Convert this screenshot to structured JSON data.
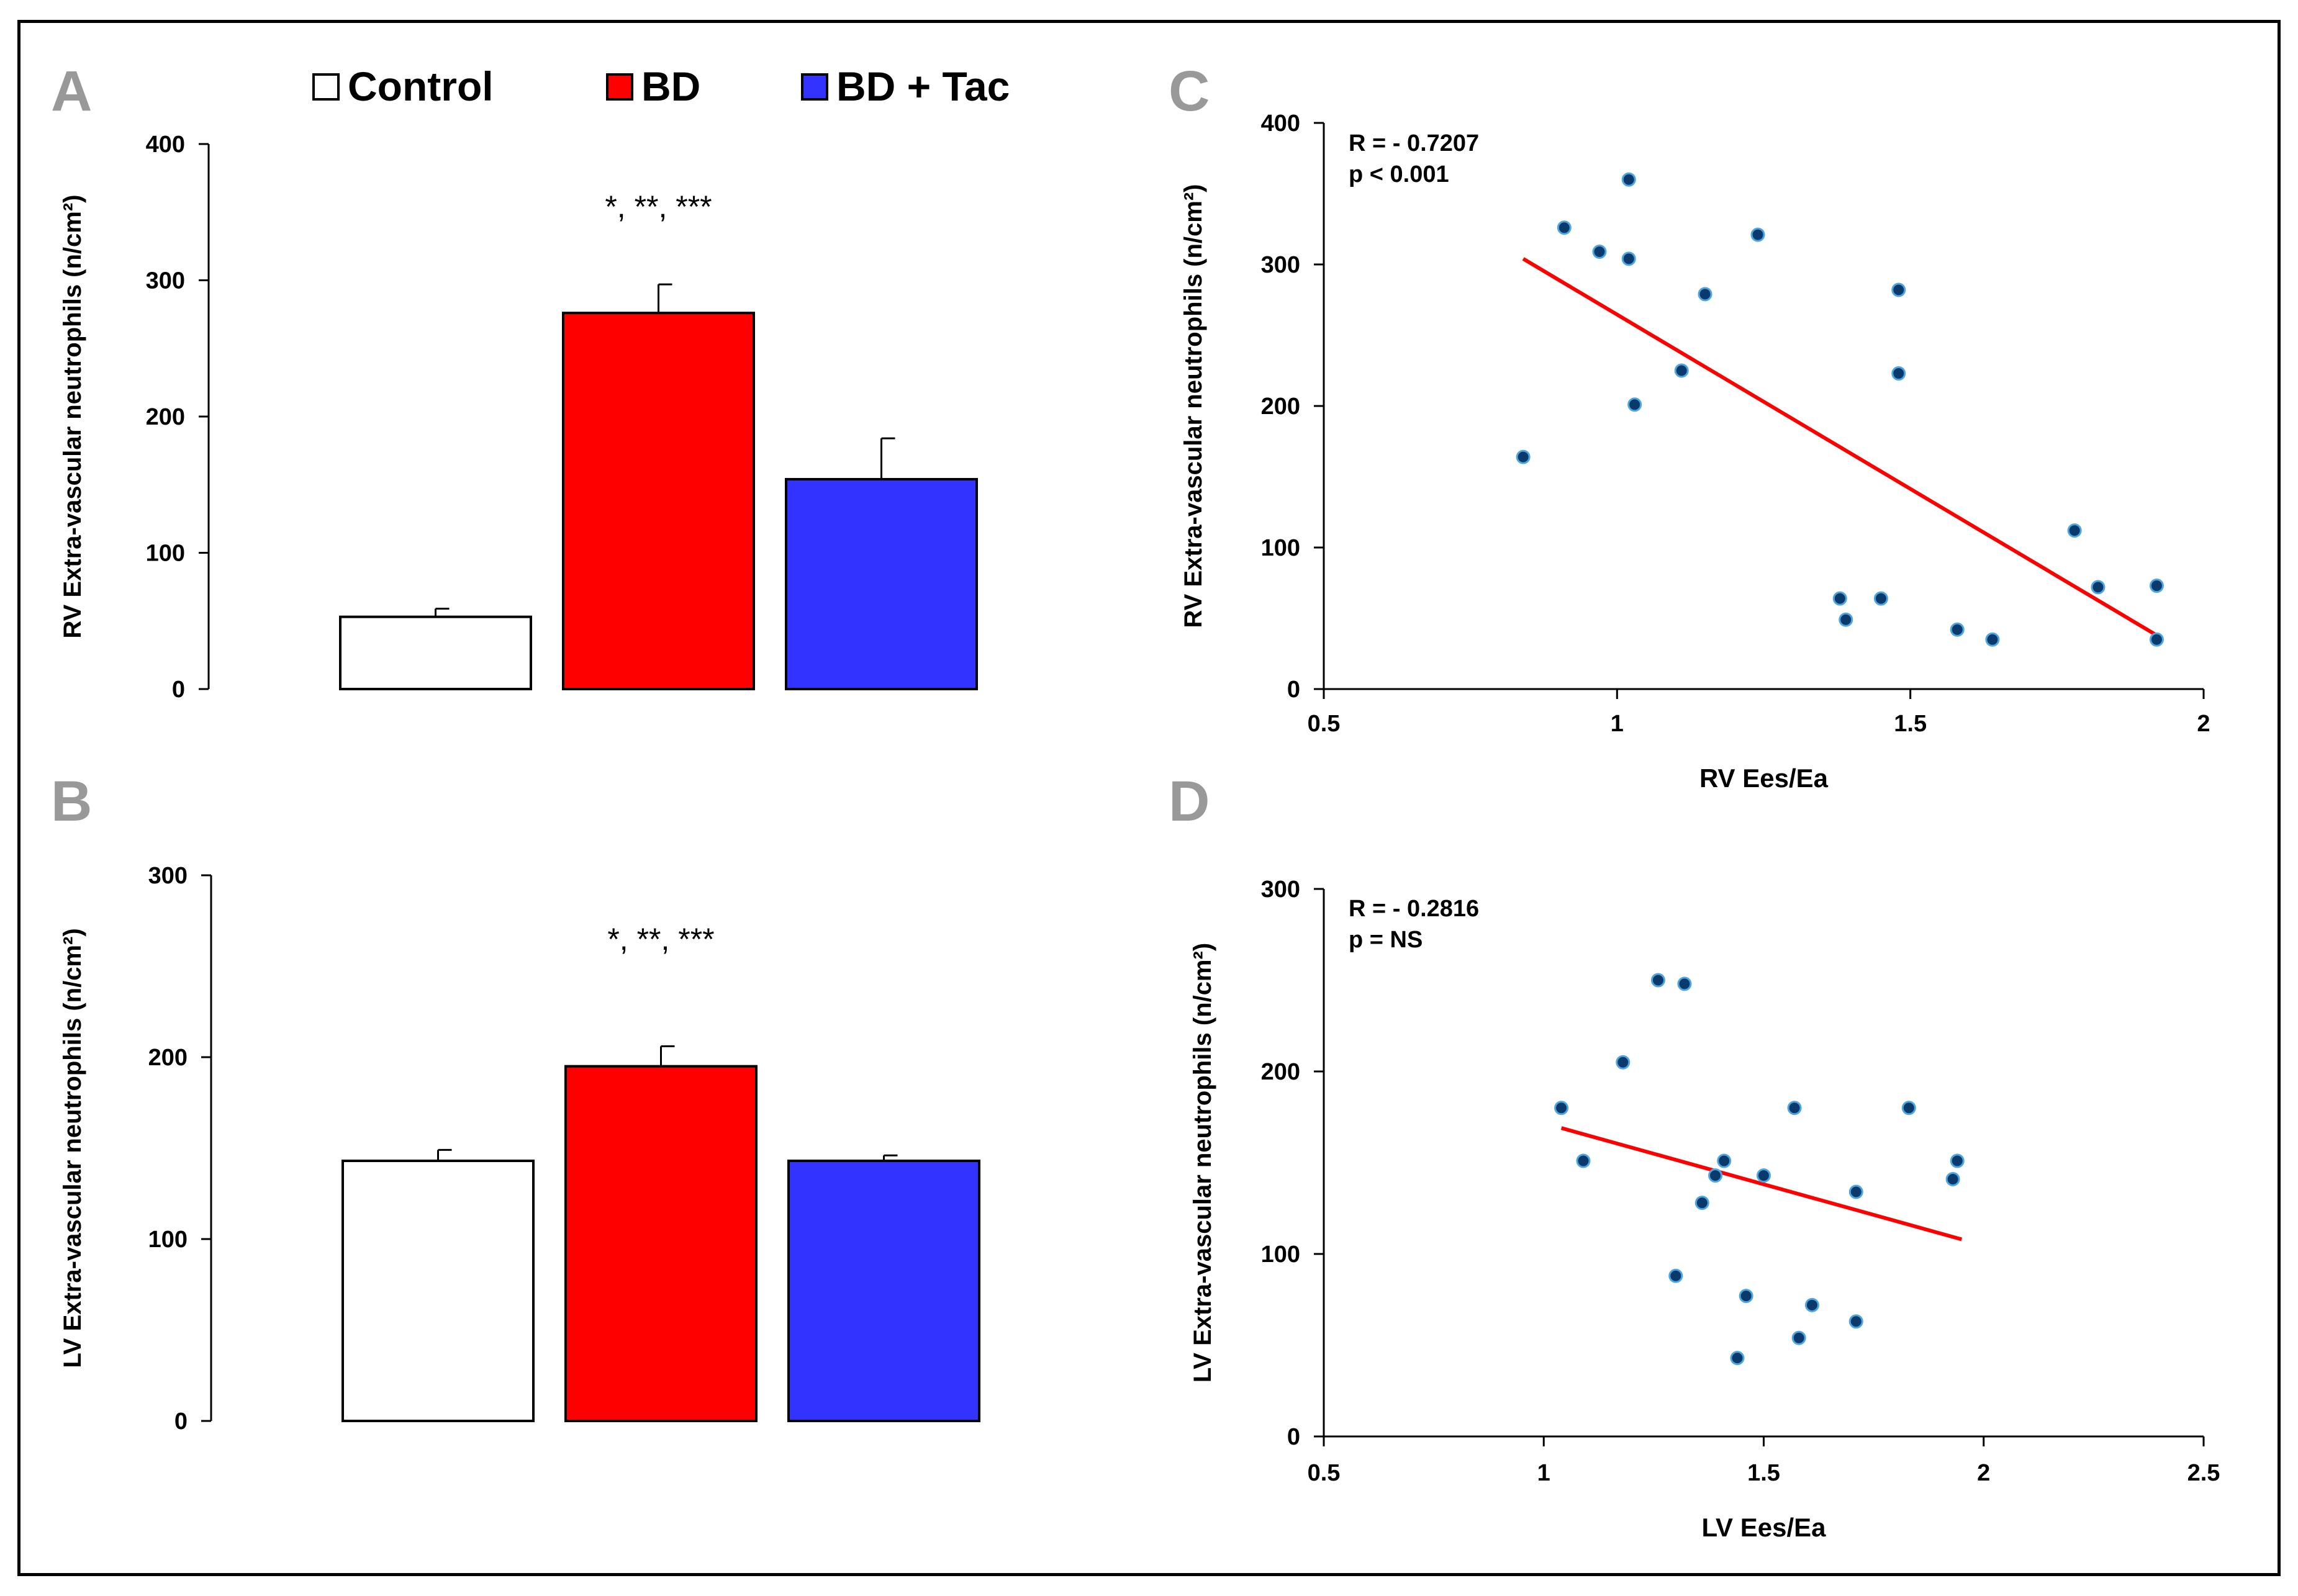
{
  "colors": {
    "control": "#ffffff",
    "bd": "#ff0000",
    "bd_tac": "#3333ff",
    "fit_line": "#ff0000",
    "point_fill": "#0a3a6b",
    "point_edge": "#4da6e0",
    "panel_letter": "#999999"
  },
  "legend": [
    {
      "label": "Control",
      "color": "#ffffff"
    },
    {
      "label": "BD",
      "color": "#ff0000"
    },
    {
      "label": "BD + Tac",
      "color": "#3333ff"
    }
  ],
  "chart_data": [
    {
      "panel": "A",
      "type": "bar",
      "ylabel": "RV Extra-vascular neutrophils (n/cm²)",
      "ylim": [
        0,
        400
      ],
      "yticks": [
        "0",
        "100",
        "200",
        "300",
        "400"
      ],
      "categories": [
        "Control",
        "BD",
        "BD + Tac"
      ],
      "values": [
        53,
        276,
        154
      ],
      "errors": [
        6,
        21,
        30
      ],
      "annotation": "*, **, ***"
    },
    {
      "panel": "B",
      "type": "bar",
      "ylabel": "LV Extra-vascular neutrophils (n/cm²)",
      "ylim": [
        0,
        300
      ],
      "yticks": [
        "0",
        "100",
        "200",
        "300"
      ],
      "categories": [
        "Control",
        "BD",
        "BD + Tac"
      ],
      "values": [
        143,
        195,
        143
      ],
      "errors": [
        6,
        11,
        3
      ],
      "annotation": "*, **, ***"
    },
    {
      "panel": "C",
      "type": "scatter",
      "xlabel": "RV Ees/Ea",
      "ylabel": "RV Extra-vascular neutrophils (n/cm²)",
      "xlim": [
        0.5,
        2
      ],
      "ylim": [
        0,
        400
      ],
      "xticks": [
        "0.5",
        "1",
        "1.5",
        "2"
      ],
      "yticks": [
        "0",
        "100",
        "200",
        "300",
        "400"
      ],
      "stats": [
        "R = - 0.7207",
        "p <  0.001"
      ],
      "points": [
        [
          0.84,
          164
        ],
        [
          0.91,
          326
        ],
        [
          0.97,
          309
        ],
        [
          1.02,
          360
        ],
        [
          1.02,
          304
        ],
        [
          1.03,
          201
        ],
        [
          1.11,
          225
        ],
        [
          1.15,
          279
        ],
        [
          1.24,
          321
        ],
        [
          1.38,
          64
        ],
        [
          1.39,
          49
        ],
        [
          1.45,
          64
        ],
        [
          1.48,
          282
        ],
        [
          1.48,
          223
        ],
        [
          1.58,
          42
        ],
        [
          1.64,
          35
        ],
        [
          1.78,
          112
        ],
        [
          1.82,
          72
        ],
        [
          1.92,
          73
        ],
        [
          1.92,
          35
        ]
      ],
      "fit": [
        [
          0.84,
          304
        ],
        [
          1.92,
          38
        ]
      ]
    },
    {
      "panel": "D",
      "type": "scatter",
      "xlabel": "LV Ees/Ea",
      "ylabel": "LV Extra-vascular neutrophils (n/cm²)",
      "xlim": [
        0.5,
        2.5
      ],
      "ylim": [
        0,
        300
      ],
      "xticks": [
        "0.5",
        "1",
        "1.5",
        "2",
        "2.5"
      ],
      "yticks": [
        "0",
        "100",
        "200",
        "300"
      ],
      "stats": [
        "R = - 0.2816",
        "p = NS"
      ],
      "points": [
        [
          1.04,
          180
        ],
        [
          1.09,
          151
        ],
        [
          1.18,
          205
        ],
        [
          1.26,
          250
        ],
        [
          1.3,
          88
        ],
        [
          1.32,
          248
        ],
        [
          1.36,
          128
        ],
        [
          1.39,
          143
        ],
        [
          1.41,
          151
        ],
        [
          1.44,
          43
        ],
        [
          1.46,
          77
        ],
        [
          1.5,
          143
        ],
        [
          1.57,
          180
        ],
        [
          1.58,
          54
        ],
        [
          1.61,
          72
        ],
        [
          1.71,
          134
        ],
        [
          1.71,
          63
        ],
        [
          1.83,
          180
        ],
        [
          1.93,
          141
        ],
        [
          1.94,
          151
        ]
      ],
      "fit": [
        [
          1.04,
          169
        ],
        [
          1.95,
          108
        ]
      ]
    }
  ]
}
